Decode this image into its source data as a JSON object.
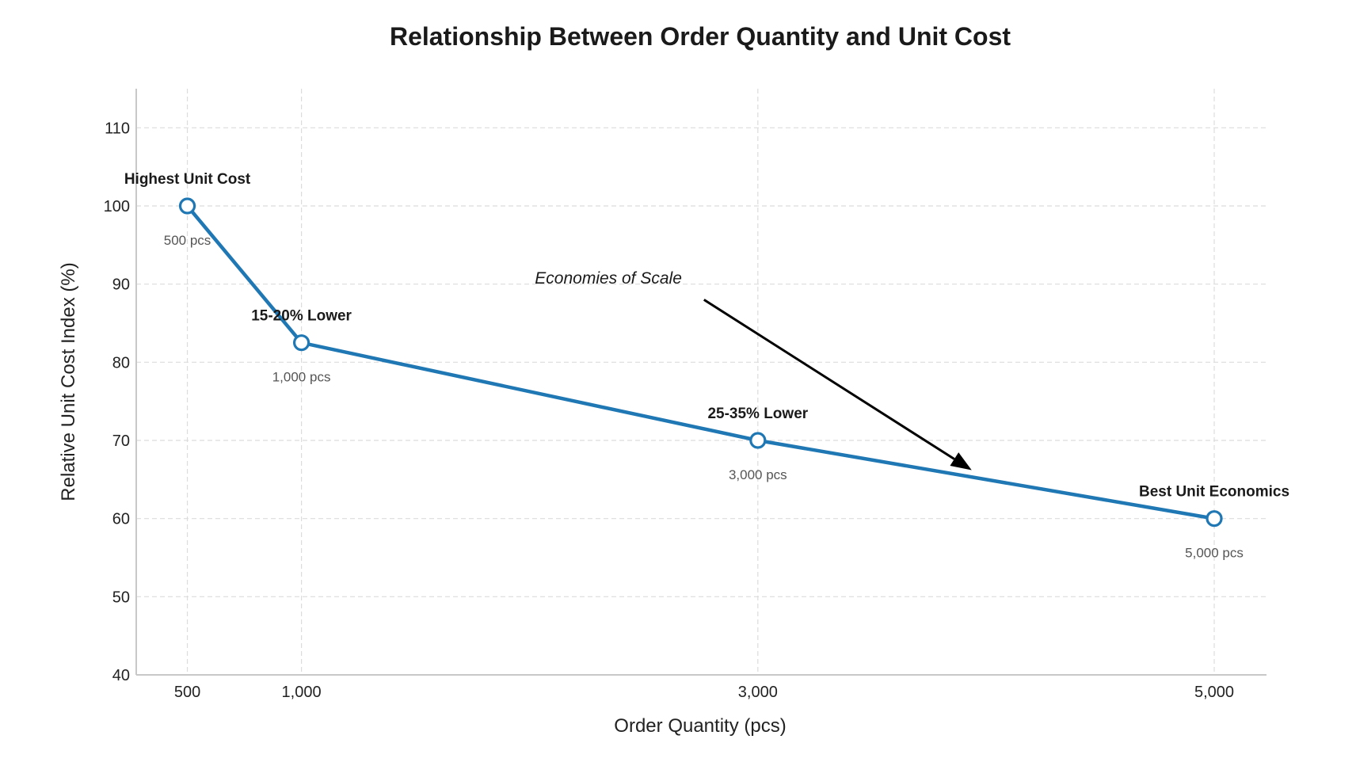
{
  "chart_data": {
    "type": "line",
    "title": "Relationship Between Order Quantity and Unit Cost",
    "xlabel": "Order Quantity (pcs)",
    "ylabel": "Relative Unit Cost Index (%)",
    "xlim": [
      276,
      5229
    ],
    "ylim": [
      40,
      115
    ],
    "xticks": [
      500,
      1000,
      3000,
      5000
    ],
    "xtick_labels": [
      "500",
      "1,000",
      "3,000",
      "5,000"
    ],
    "yticks": [
      40,
      50,
      60,
      70,
      80,
      90,
      100,
      110
    ],
    "ytick_labels": [
      "40",
      "50",
      "60",
      "70",
      "80",
      "90",
      "100",
      "110"
    ],
    "grid": true,
    "series": [
      {
        "x": [
          500,
          1000,
          3000,
          5000
        ],
        "y": [
          100,
          82.5,
          70,
          60
        ],
        "color": "#1f77b4",
        "marker": "open-circle"
      }
    ],
    "point_labels": [
      {
        "x": 500,
        "y": 100,
        "text": "Highest Unit Cost",
        "sub": "500 pcs"
      },
      {
        "x": 1000,
        "y": 82.5,
        "text": "15-20% Lower",
        "sub": "1,000 pcs"
      },
      {
        "x": 3000,
        "y": 70,
        "text": "25-35% Lower",
        "sub": "3,000 pcs"
      },
      {
        "x": 5000,
        "y": 60,
        "text": "Best Unit Economics",
        "sub": "5,000 pcs"
      }
    ],
    "arrow_annotation": {
      "text": "Economies of Scale",
      "text_at": [
        2345,
        90.8
      ],
      "from": [
        2764,
        88.0
      ],
      "to": [
        3937,
        66.2
      ]
    }
  }
}
